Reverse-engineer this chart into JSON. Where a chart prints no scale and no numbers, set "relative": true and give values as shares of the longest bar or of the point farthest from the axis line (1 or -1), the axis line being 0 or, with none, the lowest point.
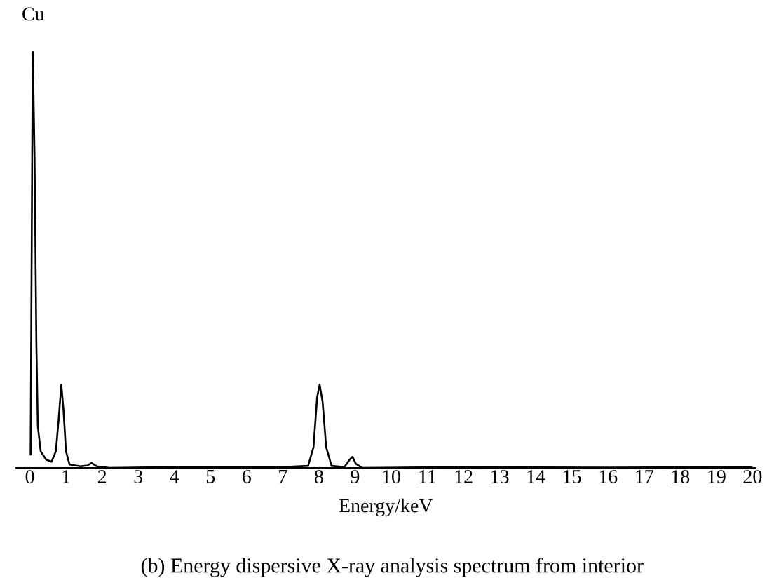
{
  "chart_data": {
    "type": "line",
    "relative": true,
    "xlabel": "Energy/keV",
    "annotations": [
      "Cu",
      "(b) Energy dispersive X-ray analysis spectrum from interior"
    ],
    "xlim": [
      -0.4,
      20.1
    ],
    "xticks": [
      0,
      1,
      2,
      3,
      4,
      5,
      6,
      7,
      8,
      9,
      10,
      11,
      12,
      13,
      14,
      15,
      16,
      17,
      18,
      19,
      20
    ],
    "tick_labels": "x",
    "marker": "none",
    "line_style": "solid",
    "series": [
      {
        "color": "#000000",
        "x": [
          0.02,
          0.08,
          0.13,
          0.18,
          0.22,
          0.3,
          0.45,
          0.6,
          0.72,
          0.8,
          0.87,
          0.93,
          1.0,
          1.1,
          1.4,
          1.6,
          1.7,
          1.85,
          2.2,
          4,
          7,
          7.7,
          7.85,
          7.95,
          8.02,
          8.1,
          8.2,
          8.35,
          8.7,
          8.85,
          8.93,
          9.02,
          9.2,
          12,
          16,
          20
        ],
        "values": [
          0.03,
          1.0,
          0.75,
          0.3,
          0.1,
          0.04,
          0.02,
          0.015,
          0.04,
          0.12,
          0.2,
          0.14,
          0.04,
          0.008,
          0.004,
          0.006,
          0.012,
          0.004,
          0,
          0.002,
          0.002,
          0.005,
          0.05,
          0.17,
          0.2,
          0.16,
          0.05,
          0.005,
          0.002,
          0.02,
          0.027,
          0.01,
          0,
          0.002,
          0.001,
          0.002
        ]
      }
    ]
  }
}
